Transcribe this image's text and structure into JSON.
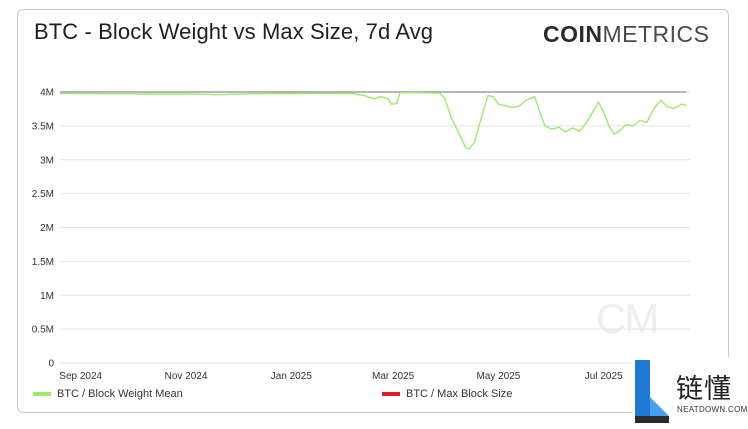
{
  "colors": {
    "mean_series": "#9fe870",
    "max_series": "#e1192c",
    "grid": "#e3e3e3",
    "axis_text": "#333333"
  },
  "brand": {
    "part1": "COIN",
    "part2": "METRICS"
  },
  "watermark_badge": {
    "chinese_text": "链懂",
    "url": "NEATDOWN.COM"
  },
  "chart_data": {
    "type": "line",
    "title": "BTC - Block Weight vs Max Size, 7d Avg",
    "ylim": [
      0,
      4000000
    ],
    "y_ticks": [
      0,
      500000,
      1000000,
      1500000,
      2000000,
      2500000,
      3000000,
      3500000,
      4000000
    ],
    "y_tick_labels": [
      "0",
      "0.5M",
      "1M",
      "1.5M",
      "2M",
      "2.5M",
      "3M",
      "3.5M",
      "4M"
    ],
    "x_range": [
      "2024-08-20",
      "2025-08-20"
    ],
    "x_ticks": [
      "2024-09-01",
      "2024-11-01",
      "2025-01-01",
      "2025-03-01",
      "2025-05-01",
      "2025-07-01"
    ],
    "x_tick_labels": [
      "Sep 2024",
      "Nov 2024",
      "Jan 2025",
      "Mar 2025",
      "May 2025",
      "Jul 2025"
    ],
    "legend": [
      "BTC / Block Weight Mean",
      "BTC / Max Block Size"
    ],
    "series": [
      {
        "name": "BTC / Block Weight Mean",
        "points": [
          [
            "2024-08-20",
            3980000
          ],
          [
            "2024-09-15",
            3975000
          ],
          [
            "2024-10-10",
            3970000
          ],
          [
            "2024-11-01",
            3972000
          ],
          [
            "2024-11-20",
            3960000
          ],
          [
            "2024-12-10",
            3975000
          ],
          [
            "2025-01-01",
            3978000
          ],
          [
            "2025-01-20",
            3980000
          ],
          [
            "2025-02-05",
            3978000
          ],
          [
            "2025-02-12",
            3950000
          ],
          [
            "2025-02-18",
            3900000
          ],
          [
            "2025-02-22",
            3930000
          ],
          [
            "2025-02-26",
            3900000
          ],
          [
            "2025-02-28",
            3820000
          ],
          [
            "2025-03-03",
            3830000
          ],
          [
            "2025-03-05",
            3990000
          ],
          [
            "2025-03-15",
            3990000
          ],
          [
            "2025-03-28",
            3985000
          ],
          [
            "2025-03-31",
            3900000
          ],
          [
            "2025-04-04",
            3600000
          ],
          [
            "2025-04-08",
            3400000
          ],
          [
            "2025-04-12",
            3180000
          ],
          [
            "2025-04-14",
            3160000
          ],
          [
            "2025-04-17",
            3250000
          ],
          [
            "2025-04-22",
            3700000
          ],
          [
            "2025-04-25",
            3950000
          ],
          [
            "2025-04-28",
            3930000
          ],
          [
            "2025-05-01",
            3820000
          ],
          [
            "2025-05-05",
            3800000
          ],
          [
            "2025-05-09",
            3770000
          ],
          [
            "2025-05-13",
            3790000
          ],
          [
            "2025-05-17",
            3880000
          ],
          [
            "2025-05-22",
            3930000
          ],
          [
            "2025-05-25",
            3700000
          ],
          [
            "2025-05-28",
            3500000
          ],
          [
            "2025-06-01",
            3450000
          ],
          [
            "2025-06-05",
            3480000
          ],
          [
            "2025-06-09",
            3410000
          ],
          [
            "2025-06-13",
            3470000
          ],
          [
            "2025-06-17",
            3420000
          ],
          [
            "2025-06-21",
            3550000
          ],
          [
            "2025-06-25",
            3720000
          ],
          [
            "2025-06-28",
            3850000
          ],
          [
            "2025-07-01",
            3700000
          ],
          [
            "2025-07-04",
            3500000
          ],
          [
            "2025-07-07",
            3380000
          ],
          [
            "2025-07-10",
            3420000
          ],
          [
            "2025-07-14",
            3520000
          ],
          [
            "2025-07-18",
            3500000
          ],
          [
            "2025-07-22",
            3580000
          ],
          [
            "2025-07-26",
            3550000
          ],
          [
            "2025-07-30",
            3750000
          ],
          [
            "2025-08-03",
            3880000
          ],
          [
            "2025-08-07",
            3780000
          ],
          [
            "2025-08-11",
            3760000
          ],
          [
            "2025-08-15",
            3820000
          ],
          [
            "2025-08-18",
            3800000
          ]
        ]
      },
      {
        "name": "BTC / Max Block Size",
        "points": [
          [
            "2024-08-20",
            4000000
          ],
          [
            "2025-08-18",
            4000000
          ]
        ]
      }
    ]
  }
}
